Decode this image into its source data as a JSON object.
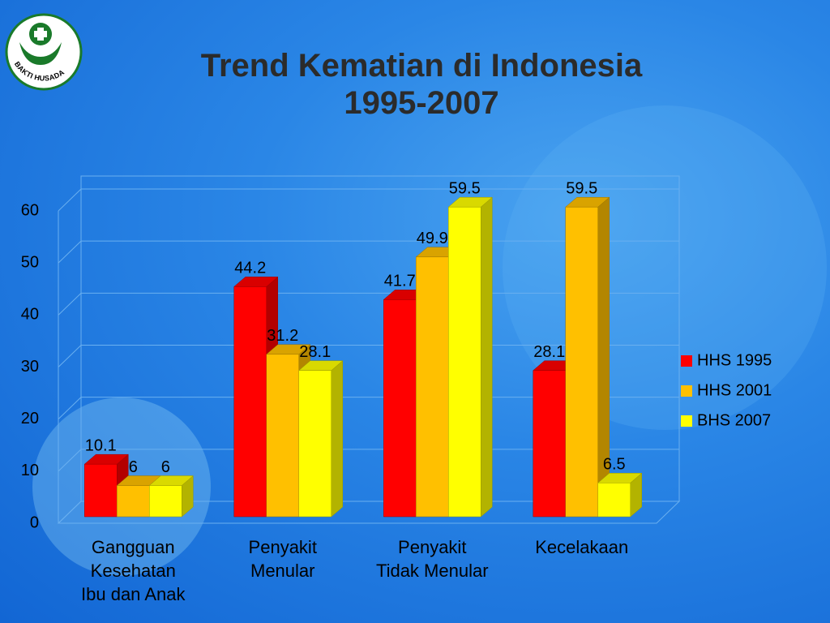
{
  "logo": {
    "text": "BAKTI HUSADA"
  },
  "chart_data": {
    "type": "bar3d",
    "title": "Trend Kematian di  Indonesia\n1995-2007",
    "categories": [
      "Gangguan\nKesehatan\nIbu dan Anak",
      "Penyakit\nMenular",
      "Penyakit\nTidak Menular",
      "Kecelakaan"
    ],
    "series": [
      {
        "name": "HHS 1995",
        "color": "#ff0000",
        "values": [
          10.1,
          44.2,
          41.7,
          28.1
        ]
      },
      {
        "name": "HHS 2001",
        "color": "#ffc000",
        "values": [
          6,
          31.2,
          49.9,
          59.5
        ]
      },
      {
        "name": "BHS 2007",
        "color": "#ffff00",
        "values": [
          6,
          28.1,
          59.5,
          6.5
        ]
      }
    ],
    "ylim": [
      0,
      60
    ],
    "yticks": [
      0,
      10,
      20,
      30,
      40,
      50,
      60
    ],
    "grid": true,
    "legend": "right"
  }
}
